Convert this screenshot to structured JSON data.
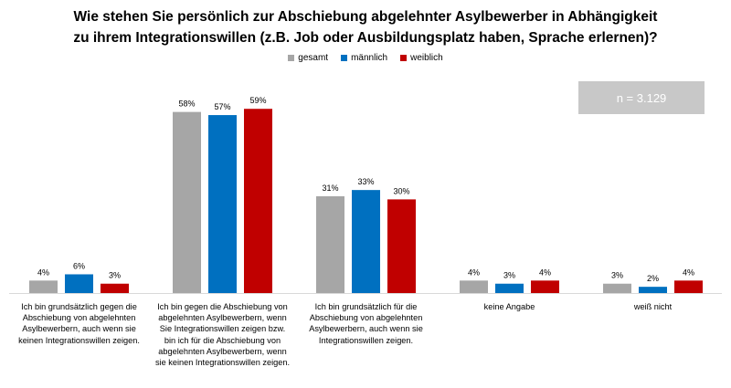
{
  "chart_data": {
    "type": "bar",
    "title_lines": [
      "Wie stehen Sie persönlich zur Abschiebung abgelehnter Asylbewerber in Abhängigkeit",
      "zu ihrem Integrationswillen (z.B. Job oder Ausbildungsplatz haben, Sprache erlernen)?"
    ],
    "categories": [
      "Ich bin grundsätzlich gegen die Abschiebung von abgelehnten Asylbewerbern, auch wenn sie keinen Integrationswillen zeigen.",
      "Ich bin gegen die Abschiebung von abgelehnten Asylbewerbern, wenn Sie Integrationswillen zeigen bzw. bin ich für die Abschiebung von abgelehnten Asylbewerbern, wenn sie keinen Integrationswillen zeigen.",
      "Ich bin grundsätzlich für die Abschiebung von abgelehnten Asylbewerbern, auch wenn sie Integrationswillen zeigen.",
      "keine Angabe",
      "weiß nicht"
    ],
    "series": [
      {
        "name": "gesamt",
        "color": "#a6a6a6",
        "values": [
          4,
          58,
          31,
          4,
          3
        ]
      },
      {
        "name": "männlich",
        "color": "#0070c0",
        "values": [
          6,
          57,
          33,
          3,
          2
        ]
      },
      {
        "name": "weiblich",
        "color": "#c00000",
        "values": [
          3,
          59,
          30,
          4,
          4
        ]
      }
    ],
    "value_suffix": "%",
    "annotation": "n = 3.129",
    "legend_position": "top-center",
    "grid": false
  }
}
